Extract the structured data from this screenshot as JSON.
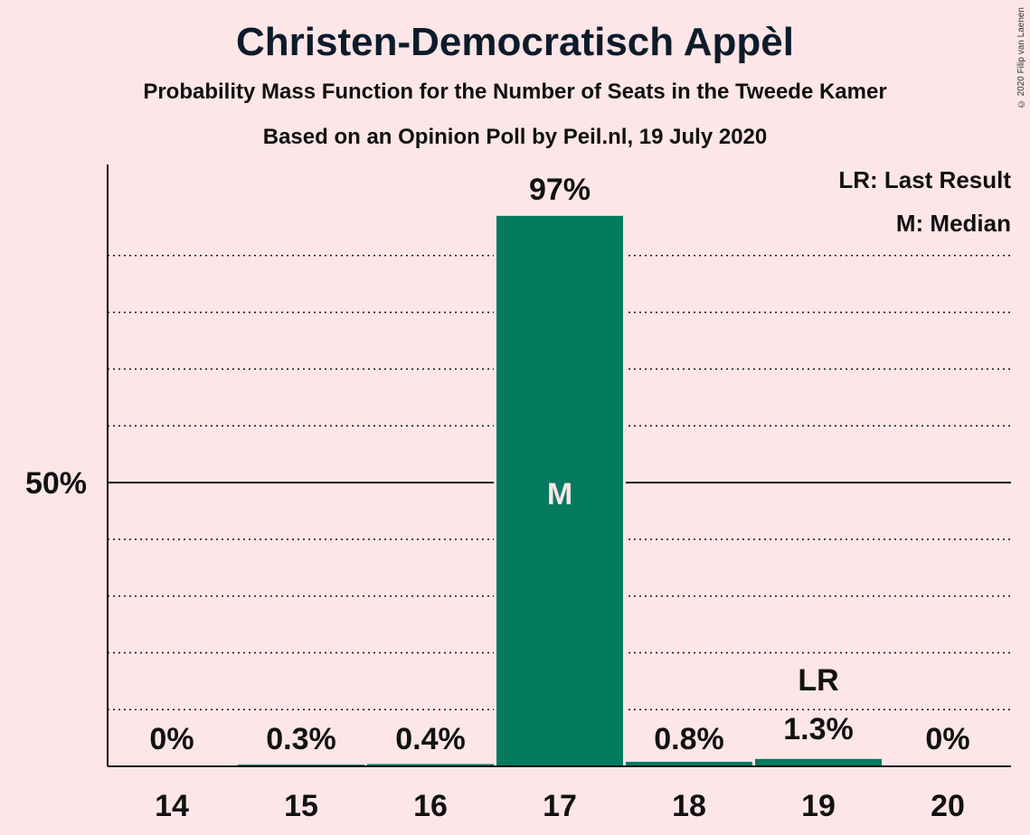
{
  "header": {
    "title": "Christen-Democratisch Appèl",
    "subtitle1": "Probability Mass Function for the Number of Seats in the Tweede Kamer",
    "subtitle2": "Based on an Opinion Poll by Peil.nl, 19 July 2020",
    "copyright": "© 2020 Filip van Laenen"
  },
  "legend": {
    "last_result": "LR: Last Result",
    "median": "M: Median"
  },
  "colors": {
    "background": "#fce6e8",
    "bar": "#047a5f",
    "text": "#111111"
  },
  "chart_data": {
    "type": "bar",
    "title": "Christen-Democratisch Appèl",
    "categories": [
      "14",
      "15",
      "16",
      "17",
      "18",
      "19",
      "20"
    ],
    "values": [
      0,
      0.3,
      0.4,
      97,
      0.8,
      1.3,
      0
    ],
    "value_labels": [
      "0%",
      "0.3%",
      "0.4%",
      "97%",
      "0.8%",
      "1.3%",
      "0%"
    ],
    "ylim": [
      0,
      100
    ],
    "y_ticks": [
      {
        "value": 50,
        "label": "50%"
      }
    ],
    "gridlines": [
      10,
      20,
      30,
      40,
      60,
      70,
      80,
      90
    ],
    "median_category": "17",
    "median_label": "M",
    "last_result_category": "19",
    "last_result_label": "LR",
    "legend_position": "top-right"
  }
}
